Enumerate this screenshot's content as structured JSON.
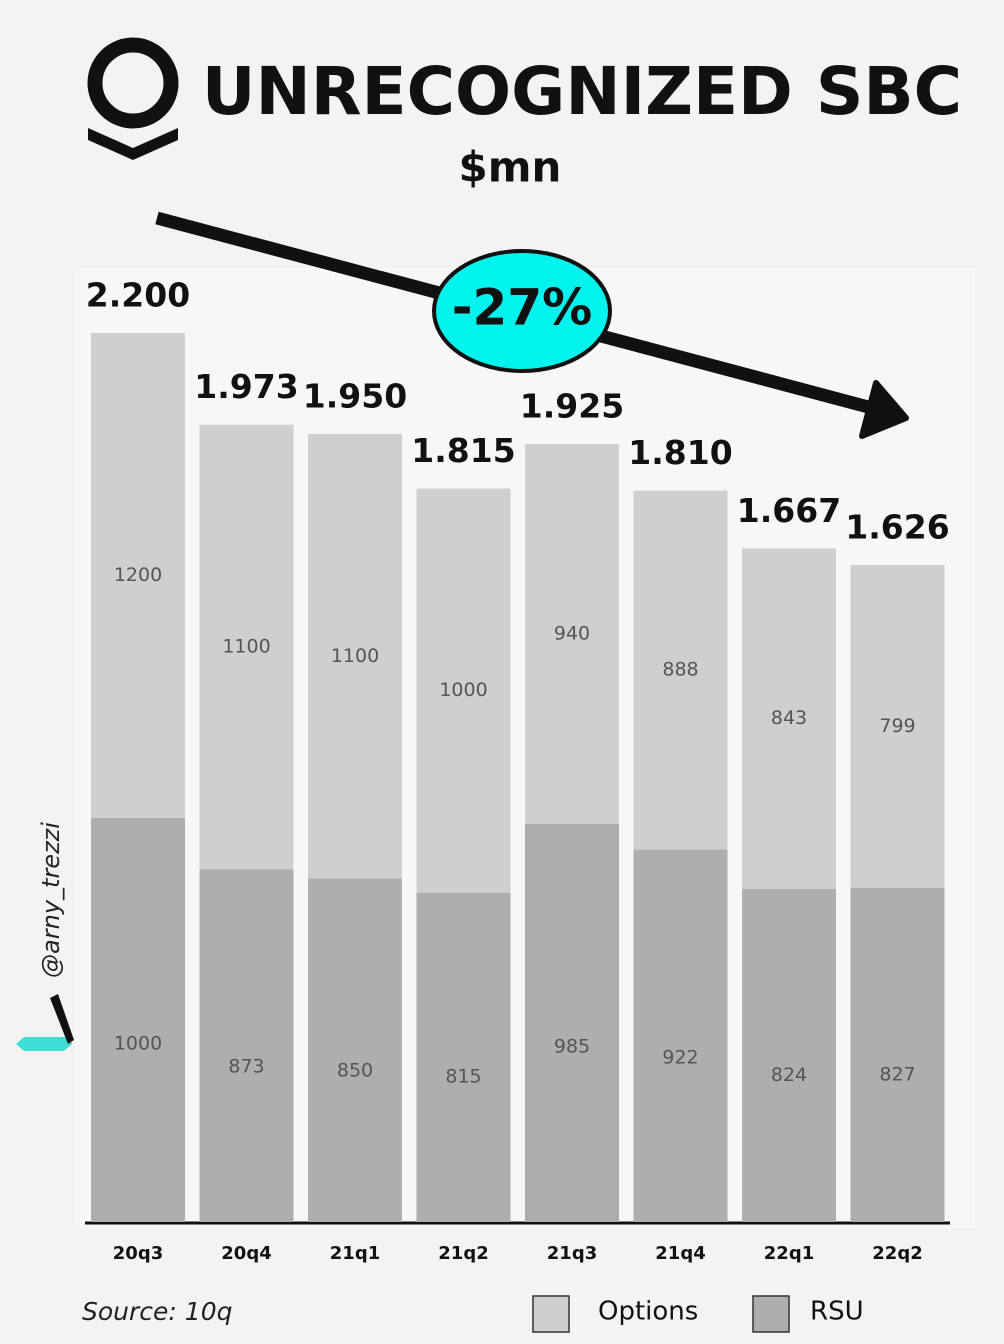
{
  "chart_data": {
    "type": "stacked_bar",
    "title": "UNRECOGNIZED SBC",
    "subtitle": "$mn",
    "annotation": "-27%",
    "source": "Source: 10q",
    "watermark": "@arny_trezzi",
    "categories": [
      "20q3",
      "20q4",
      "21q1",
      "21q2",
      "21q3",
      "21q4",
      "22q1",
      "22q2"
    ],
    "series": [
      {
        "name": "RSU",
        "color": "#b0adad",
        "values": [
          1000,
          873,
          850,
          815,
          985,
          922,
          824,
          827
        ]
      },
      {
        "name": "Options",
        "color": "#d0cfcf",
        "values": [
          1200,
          1100,
          1100,
          1000,
          940,
          888,
          843,
          799
        ]
      }
    ],
    "totals": {
      "values": [
        2200,
        1973,
        1950,
        1815,
        1925,
        1810,
        1667,
        1626
      ],
      "value_labels": [
        "2.200",
        "1.973",
        "1.950",
        "1.815",
        "1.925",
        "1.810",
        "1.667",
        "1.626"
      ]
    }
  }
}
